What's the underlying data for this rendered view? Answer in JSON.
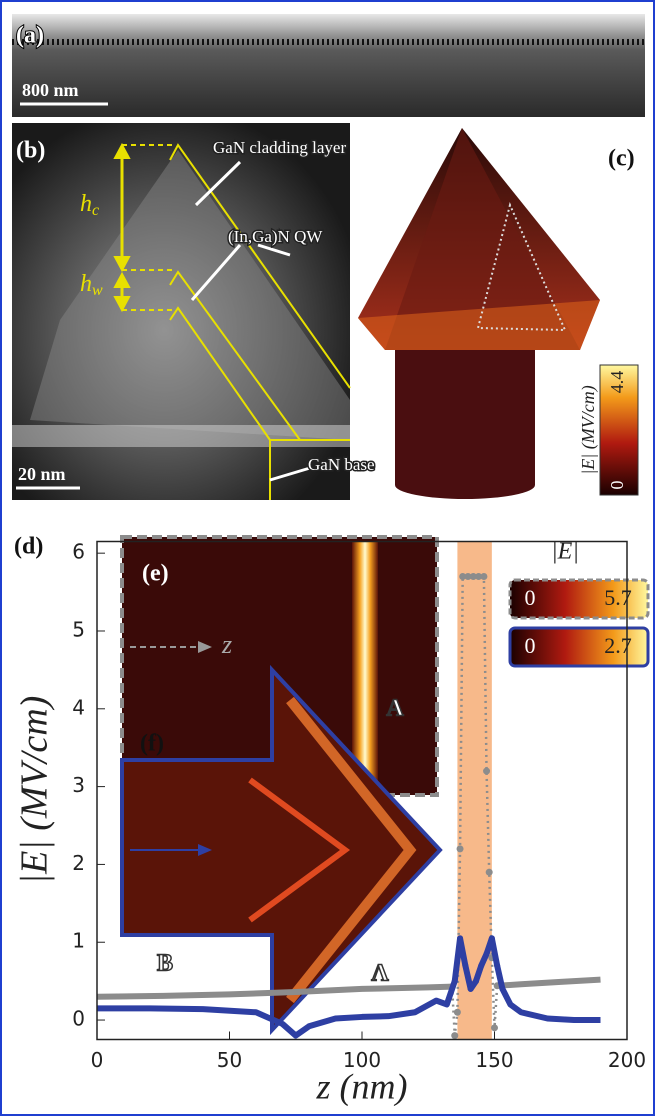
{
  "panels": {
    "a": {
      "label": "(a)",
      "scale_bar": "800 nm"
    },
    "b": {
      "label": "(b)",
      "h_c": {
        "main": "h",
        "sub": "c"
      },
      "h_w": {
        "main": "h",
        "sub": "w"
      },
      "cladding": "GaN cladding layer",
      "qw": "(In,Ga)N QW",
      "scale_bar": "20 nm",
      "base": "GaN base"
    },
    "c": {
      "label": "(c)",
      "colorbar": {
        "label": "|E| (MV/cm)",
        "min": 0,
        "max": 4.4
      }
    }
  },
  "chart_data": {
    "type": "line",
    "label": "(d)",
    "xlabel": "z (nm)",
    "ylabel": "|E| (MV/cm)",
    "xlim": [
      0,
      200
    ],
    "ylim": [
      -0.25,
      6.15
    ],
    "xticks": [
      0,
      50,
      100,
      150,
      200
    ],
    "yticks": [
      0,
      1,
      2,
      3,
      4,
      5,
      6
    ],
    "highlight": {
      "range": [
        136,
        149
      ],
      "color": "#f7b98a"
    },
    "series": [
      {
        "color": "#8c8c8c",
        "style": "solid",
        "markers": false,
        "x": [
          0,
          25,
          50,
          75,
          100,
          125,
          134,
          142,
          151,
          160,
          175,
          190
        ],
        "values": [
          0.3,
          0.31,
          0.33,
          0.36,
          0.4,
          0.42,
          0.43,
          null,
          0.44,
          0.46,
          0.49,
          0.52
        ]
      },
      {
        "color": "#8c8c8c",
        "style": "dotted",
        "markers": true,
        "x": [
          134,
          135,
          136,
          137,
          138,
          140,
          142,
          144,
          146,
          147,
          148,
          149,
          150,
          151
        ],
        "values": [
          0.43,
          -0.2,
          0.1,
          2.2,
          5.7,
          5.7,
          5.7,
          5.7,
          5.7,
          3.2,
          1.9,
          0.8,
          -0.1,
          0.44
        ]
      },
      {
        "color": "#2e3fa3",
        "style": "solid",
        "markers": false,
        "x": [
          0,
          20,
          40,
          60,
          70,
          75,
          80,
          90,
          100,
          110,
          120,
          128,
          132,
          135,
          137,
          139,
          141,
          143,
          145,
          147,
          149,
          151,
          153,
          156,
          160,
          170,
          180,
          190
        ],
        "values": [
          0.15,
          0.15,
          0.14,
          0.1,
          -0.05,
          -0.2,
          -0.08,
          0.02,
          0.04,
          0.05,
          0.1,
          0.25,
          0.2,
          0.5,
          1.05,
          0.7,
          0.4,
          0.5,
          0.7,
          0.85,
          1.05,
          0.7,
          0.4,
          0.2,
          0.1,
          0.02,
          0,
          0
        ]
      }
    ],
    "insets": {
      "e": {
        "label": "(e)",
        "axis": "z"
      },
      "f": {
        "label": "(f)",
        "mark_a1": "A",
        "mark_b": "B",
        "mark_a2": "Λ"
      }
    },
    "colorbars": {
      "title": "|E|",
      "items": [
        {
          "min": 0,
          "max": 5.7,
          "border": "#8c8c8c"
        },
        {
          "min": 0,
          "max": 2.7,
          "border": "#2e3fa3"
        }
      ]
    }
  }
}
